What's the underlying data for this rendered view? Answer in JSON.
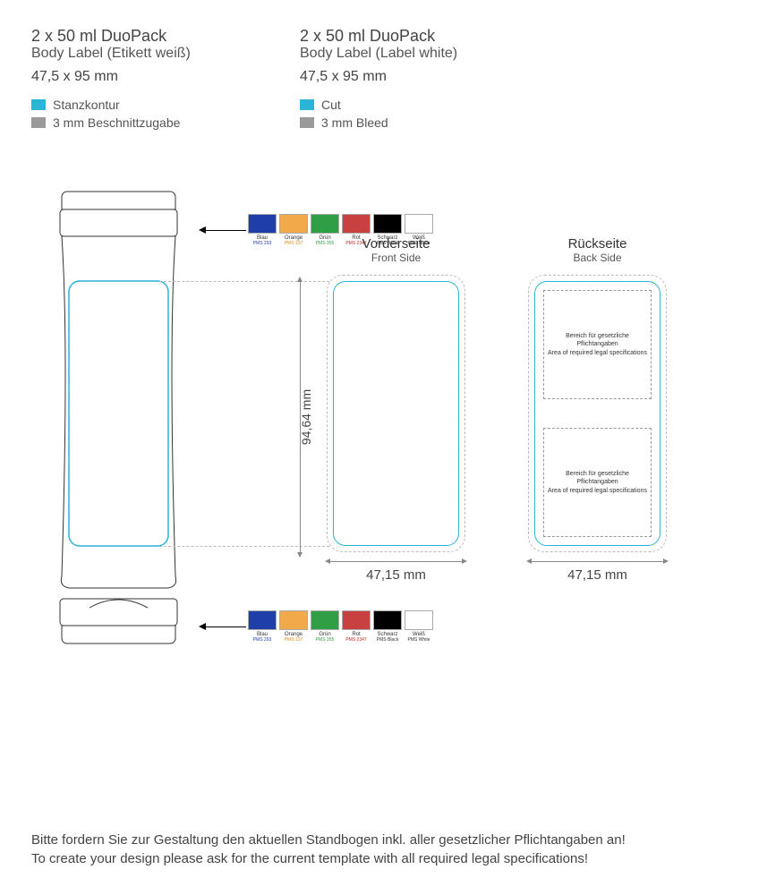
{
  "header": {
    "de": {
      "title": "2 x 50 ml DuoPack",
      "sub": "Body Label (Etikett weiß)",
      "dim": "47,5 x 95 mm",
      "cut": "Stanzkontur",
      "bleed": "3 mm Beschnittzugabe"
    },
    "en": {
      "title": "2 x 50 ml DuoPack",
      "sub": "Body Label (Label white)",
      "dim": "47,5 x 95 mm",
      "cut": "Cut",
      "bleed": "3 mm Bleed"
    }
  },
  "legend_colors": {
    "cut": "#29b4d8",
    "bleed": "#9a9a9a"
  },
  "swatches": [
    {
      "name": "Blau",
      "code": "PMS 293",
      "color": "#1f3ea8",
      "code_color": "#1f3ea8"
    },
    {
      "name": "Orange",
      "code": "PMS 137",
      "color": "#f2a94a",
      "code_color": "#e08c1a"
    },
    {
      "name": "Grün",
      "code": "PMS 355",
      "color": "#2f9e44",
      "code_color": "#2f9e44"
    },
    {
      "name": "Rot",
      "code": "PMS 2347",
      "color": "#c94040",
      "code_color": "#c22"
    },
    {
      "name": "Schwarz",
      "code": "PMS Black",
      "color": "#000000",
      "code_color": "#333"
    },
    {
      "name": "Weiß",
      "code": "PMS White",
      "color": "#ffffff",
      "code_color": "#333"
    }
  ],
  "front": {
    "title": "Vorderseite",
    "sub": "Front Side",
    "width": "47,15 mm"
  },
  "back": {
    "title": "Rückseite",
    "sub": "Back Side",
    "width": "47,15 mm"
  },
  "height_label": "94,64 mm",
  "legal": {
    "de": "Bereich für gesetzliche Pflichtangaben",
    "en": "Area of required legal specifications"
  },
  "footer": {
    "de": "Bitte fordern Sie zur Gestaltung den aktuellen Standbogen inkl. aller gesetzlicher Pflichtangaben an!",
    "en": "To create your design please ask for the current template with all required legal specifications!"
  },
  "bottle_stroke": "#333"
}
